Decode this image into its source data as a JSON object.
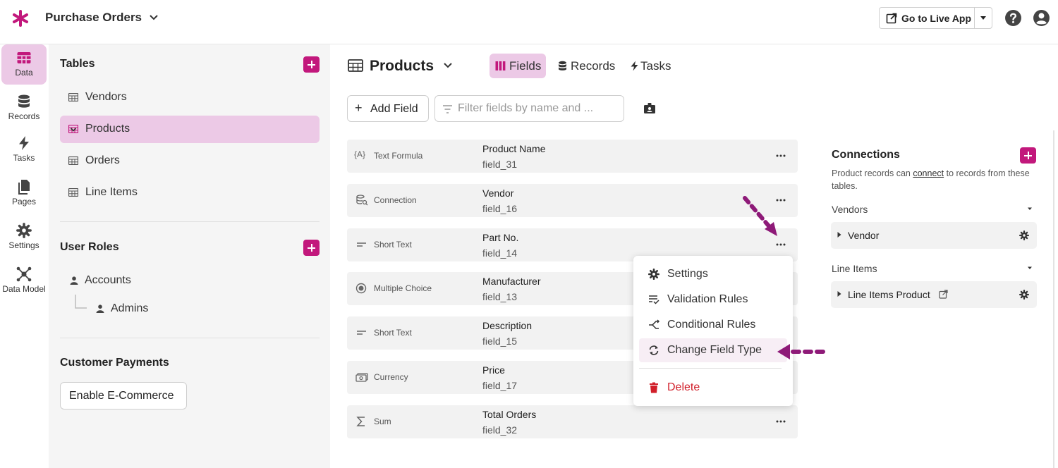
{
  "header": {
    "app_title": "Purchase Orders",
    "live_app_label": "Go to Live App",
    "brand_color": "#c2187c"
  },
  "rail": {
    "items": [
      {
        "label": "Data",
        "icon": "table-icon"
      },
      {
        "label": "Records",
        "icon": "database-icon"
      },
      {
        "label": "Tasks",
        "icon": "bolt-icon"
      },
      {
        "label": "Pages",
        "icon": "pages-icon"
      },
      {
        "label": "Settings",
        "icon": "gear-icon"
      },
      {
        "label": "Data Model",
        "icon": "data-model-icon"
      }
    ]
  },
  "sidebar": {
    "tables_heading": "Tables",
    "tables": [
      "Vendors",
      "Products",
      "Orders",
      "Line Items"
    ],
    "roles_heading": "User Roles",
    "roles": [
      "Accounts",
      "Admins"
    ],
    "payments_heading": "Customer Payments",
    "ecommerce_label": "Enable E-Commerce"
  },
  "main": {
    "table_title": "Products",
    "tabs": [
      {
        "label": "Fields",
        "icon": "fields-icon"
      },
      {
        "label": "Records",
        "icon": "database-icon"
      },
      {
        "label": "Tasks",
        "icon": "bolt-icon"
      }
    ],
    "add_field_label": "Add Field",
    "filter_placeholder": "Filter fields by name and ...",
    "fields": [
      {
        "type": "Text Formula",
        "type_icon": "text-formula-icon",
        "name": "Product Name",
        "key": "field_31"
      },
      {
        "type": "Connection",
        "type_icon": "connection-icon",
        "name": "Vendor",
        "key": "field_16"
      },
      {
        "type": "Short Text",
        "type_icon": "short-text-icon",
        "name": "Part No.",
        "key": "field_14"
      },
      {
        "type": "Multiple Choice",
        "type_icon": "multiple-choice-icon",
        "name": "Manufacturer",
        "key": "field_13"
      },
      {
        "type": "Short Text",
        "type_icon": "short-text-icon",
        "name": "Description",
        "key": "field_15"
      },
      {
        "type": "Currency",
        "type_icon": "currency-icon",
        "name": "Price",
        "key": "field_17"
      },
      {
        "type": "Sum",
        "type_icon": "sum-icon",
        "name": "Total Orders",
        "key": "field_32"
      }
    ]
  },
  "menu": {
    "items": [
      "Settings",
      "Validation Rules",
      "Conditional Rules",
      "Change Field Type"
    ],
    "delete_label": "Delete",
    "highlighted": "Change Field Type"
  },
  "connections": {
    "title": "Connections",
    "desc_before": "Product records can ",
    "desc_link": "connect",
    "desc_after": " to records from these tables.",
    "groups": [
      {
        "heading": "Vendors",
        "item": "Vendor"
      },
      {
        "heading": "Line Items",
        "item": "Line Items Product"
      }
    ]
  },
  "colors": {
    "accent": "#c2187c",
    "highlight": "#ecc9e6",
    "arrow": "#8e1a78",
    "danger": "#d11f2a"
  }
}
